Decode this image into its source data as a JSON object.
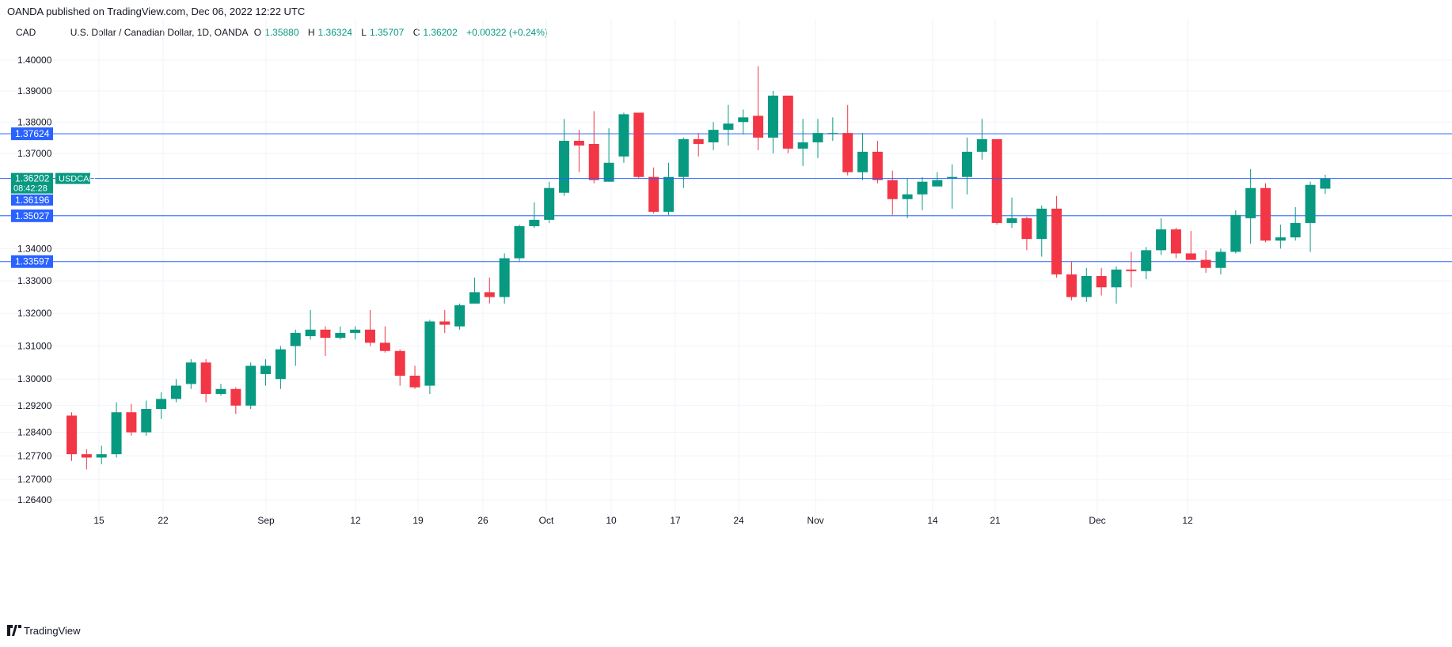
{
  "header": {
    "published": "OANDA published on TradingView.com, Dec 06, 2022 12:22 UTC"
  },
  "legend": {
    "currency": "CAD",
    "symbol_desc": "U.S. Dollar / Canadian Dollar, 1D, OANDA",
    "open_label": "O",
    "open": "1.35880",
    "high_label": "H",
    "high": "1.36324",
    "low_label": "L",
    "low": "1.35707",
    "close_label": "C",
    "close": "1.36202",
    "change": "+0.00322 (+0.24%)"
  },
  "footer": {
    "brand": "TradingView"
  },
  "colors": {
    "up": "#089981",
    "down": "#f23645",
    "hline": "#2962ff",
    "grid": "#f0f3fa",
    "axis_text": "#131722"
  },
  "chart_data": {
    "type": "candlestick",
    "title": "U.S. Dollar / Canadian Dollar, 1D, OANDA",
    "y_axis_scale": "log",
    "y_ticks": [
      1.4,
      1.39,
      1.38,
      1.37,
      1.35,
      1.34,
      1.33,
      1.32,
      1.31,
      1.3,
      1.292,
      1.284,
      1.277,
      1.27,
      1.264
    ],
    "x_ticks": [
      "15",
      "22",
      "Sep",
      "12",
      "19",
      "26",
      "Oct",
      "10",
      "17",
      "24",
      "Nov",
      "14",
      "21",
      "Dec",
      "12"
    ],
    "horizontal_lines": [
      {
        "label": "1.37624",
        "value": 1.37624
      },
      {
        "label": "1.35027",
        "value": 1.35027
      },
      {
        "label": "1.33597",
        "value": 1.33597
      }
    ],
    "price_line": {
      "value": 1.36202,
      "label": "1.36202",
      "countdown": "08:42:28",
      "symbol": "USDCAD"
    },
    "price_line_secondary": {
      "value": 1.36196,
      "label": "1.36196"
    },
    "candles": [
      {
        "o": 1.289,
        "h": 1.29,
        "l": 1.2755,
        "c": 1.2775
      },
      {
        "o": 1.2775,
        "h": 1.279,
        "l": 1.273,
        "c": 1.2765
      },
      {
        "o": 1.2765,
        "h": 1.28,
        "l": 1.2745,
        "c": 1.2775
      },
      {
        "o": 1.2775,
        "h": 1.293,
        "l": 1.2765,
        "c": 1.29
      },
      {
        "o": 1.29,
        "h": 1.2925,
        "l": 1.283,
        "c": 1.284
      },
      {
        "o": 1.284,
        "h": 1.2935,
        "l": 1.283,
        "c": 1.291
      },
      {
        "o": 1.291,
        "h": 1.296,
        "l": 1.288,
        "c": 1.294
      },
      {
        "o": 1.294,
        "h": 1.3,
        "l": 1.293,
        "c": 1.298
      },
      {
        "o": 1.2985,
        "h": 1.306,
        "l": 1.297,
        "c": 1.305
      },
      {
        "o": 1.305,
        "h": 1.306,
        "l": 1.293,
        "c": 1.2955
      },
      {
        "o": 1.2955,
        "h": 1.2985,
        "l": 1.295,
        "c": 1.297
      },
      {
        "o": 1.297,
        "h": 1.2975,
        "l": 1.2895,
        "c": 1.292
      },
      {
        "o": 1.292,
        "h": 1.305,
        "l": 1.291,
        "c": 1.304
      },
      {
        "o": 1.3015,
        "h": 1.306,
        "l": 1.298,
        "c": 1.304
      },
      {
        "o": 1.3,
        "h": 1.31,
        "l": 1.297,
        "c": 1.309
      },
      {
        "o": 1.31,
        "h": 1.315,
        "l": 1.304,
        "c": 1.314
      },
      {
        "o": 1.313,
        "h": 1.321,
        "l": 1.312,
        "c": 1.315
      },
      {
        "o": 1.315,
        "h": 1.316,
        "l": 1.307,
        "c": 1.3125
      },
      {
        "o": 1.3125,
        "h": 1.316,
        "l": 1.312,
        "c": 1.314
      },
      {
        "o": 1.314,
        "h": 1.316,
        "l": 1.312,
        "c": 1.315
      },
      {
        "o": 1.315,
        "h": 1.321,
        "l": 1.31,
        "c": 1.311
      },
      {
        "o": 1.311,
        "h": 1.316,
        "l": 1.308,
        "c": 1.3085
      },
      {
        "o": 1.3085,
        "h": 1.309,
        "l": 1.298,
        "c": 1.301
      },
      {
        "o": 1.301,
        "h": 1.304,
        "l": 1.297,
        "c": 1.2975
      },
      {
        "o": 1.298,
        "h": 1.318,
        "l": 1.2955,
        "c": 1.3175
      },
      {
        "o": 1.3175,
        "h": 1.321,
        "l": 1.314,
        "c": 1.3165
      },
      {
        "o": 1.316,
        "h": 1.323,
        "l": 1.315,
        "c": 1.3225
      },
      {
        "o": 1.323,
        "h": 1.331,
        "l": 1.323,
        "c": 1.3265
      },
      {
        "o": 1.3265,
        "h": 1.331,
        "l": 1.323,
        "c": 1.325
      },
      {
        "o": 1.325,
        "h": 1.3385,
        "l": 1.323,
        "c": 1.337
      },
      {
        "o": 1.337,
        "h": 1.3475,
        "l": 1.336,
        "c": 1.347
      },
      {
        "o": 1.347,
        "h": 1.3545,
        "l": 1.3465,
        "c": 1.349
      },
      {
        "o": 1.349,
        "h": 1.361,
        "l": 1.348,
        "c": 1.359
      },
      {
        "o": 1.3575,
        "h": 1.381,
        "l": 1.3565,
        "c": 1.374
      },
      {
        "o": 1.374,
        "h": 1.3775,
        "l": 1.364,
        "c": 1.3725
      },
      {
        "o": 1.373,
        "h": 1.3835,
        "l": 1.3605,
        "c": 1.3615
      },
      {
        "o": 1.361,
        "h": 1.378,
        "l": 1.361,
        "c": 1.367
      },
      {
        "o": 1.369,
        "h": 1.383,
        "l": 1.367,
        "c": 1.3825
      },
      {
        "o": 1.383,
        "h": 1.383,
        "l": 1.362,
        "c": 1.3625
      },
      {
        "o": 1.3625,
        "h": 1.3655,
        "l": 1.351,
        "c": 1.3515
      },
      {
        "o": 1.3515,
        "h": 1.367,
        "l": 1.3505,
        "c": 1.3625
      },
      {
        "o": 1.3625,
        "h": 1.375,
        "l": 1.359,
        "c": 1.3745
      },
      {
        "o": 1.3745,
        "h": 1.3765,
        "l": 1.369,
        "c": 1.373
      },
      {
        "o": 1.3735,
        "h": 1.38,
        "l": 1.371,
        "c": 1.3775
      },
      {
        "o": 1.3775,
        "h": 1.3855,
        "l": 1.3725,
        "c": 1.3795
      },
      {
        "o": 1.38,
        "h": 1.384,
        "l": 1.376,
        "c": 1.3815
      },
      {
        "o": 1.382,
        "h": 1.398,
        "l": 1.371,
        "c": 1.375
      },
      {
        "o": 1.375,
        "h": 1.39,
        "l": 1.37,
        "c": 1.3885
      },
      {
        "o": 1.3885,
        "h": 1.3885,
        "l": 1.37,
        "c": 1.3715
      },
      {
        "o": 1.3715,
        "h": 1.381,
        "l": 1.366,
        "c": 1.3735
      },
      {
        "o": 1.3735,
        "h": 1.381,
        "l": 1.3685,
        "c": 1.3765
      },
      {
        "o": 1.3765,
        "h": 1.3815,
        "l": 1.374,
        "c": 1.3765
      },
      {
        "o": 1.3765,
        "h": 1.3855,
        "l": 1.363,
        "c": 1.364
      },
      {
        "o": 1.364,
        "h": 1.3765,
        "l": 1.3615,
        "c": 1.3705
      },
      {
        "o": 1.3705,
        "h": 1.374,
        "l": 1.3605,
        "c": 1.3615
      },
      {
        "o": 1.3615,
        "h": 1.3645,
        "l": 1.3505,
        "c": 1.3555
      },
      {
        "o": 1.3555,
        "h": 1.362,
        "l": 1.3495,
        "c": 1.357
      },
      {
        "o": 1.357,
        "h": 1.3625,
        "l": 1.352,
        "c": 1.361
      },
      {
        "o": 1.3595,
        "h": 1.364,
        "l": 1.3595,
        "c": 1.3615
      },
      {
        "o": 1.362,
        "h": 1.3665,
        "l": 1.3525,
        "c": 1.3625
      },
      {
        "o": 1.3625,
        "h": 1.375,
        "l": 1.357,
        "c": 1.3705
      },
      {
        "o": 1.3705,
        "h": 1.381,
        "l": 1.368,
        "c": 1.3745
      },
      {
        "o": 1.3745,
        "h": 1.3745,
        "l": 1.3475,
        "c": 1.348
      },
      {
        "o": 1.348,
        "h": 1.356,
        "l": 1.3465,
        "c": 1.3495
      },
      {
        "o": 1.3495,
        "h": 1.35,
        "l": 1.3395,
        "c": 1.343
      },
      {
        "o": 1.343,
        "h": 1.3535,
        "l": 1.3375,
        "c": 1.3525
      },
      {
        "o": 1.3525,
        "h": 1.3565,
        "l": 1.331,
        "c": 1.332
      },
      {
        "o": 1.332,
        "h": 1.336,
        "l": 1.324,
        "c": 1.325
      },
      {
        "o": 1.325,
        "h": 1.334,
        "l": 1.3235,
        "c": 1.3315
      },
      {
        "o": 1.3315,
        "h": 1.334,
        "l": 1.3255,
        "c": 1.328
      },
      {
        "o": 1.328,
        "h": 1.3345,
        "l": 1.323,
        "c": 1.3335
      },
      {
        "o": 1.3335,
        "h": 1.339,
        "l": 1.328,
        "c": 1.333
      },
      {
        "o": 1.333,
        "h": 1.3405,
        "l": 1.3305,
        "c": 1.3395
      },
      {
        "o": 1.3395,
        "h": 1.3495,
        "l": 1.338,
        "c": 1.346
      },
      {
        "o": 1.346,
        "h": 1.3465,
        "l": 1.337,
        "c": 1.3385
      },
      {
        "o": 1.3385,
        "h": 1.3455,
        "l": 1.3365,
        "c": 1.3365
      },
      {
        "o": 1.3365,
        "h": 1.3395,
        "l": 1.3325,
        "c": 1.334
      },
      {
        "o": 1.334,
        "h": 1.34,
        "l": 1.332,
        "c": 1.339
      },
      {
        "o": 1.339,
        "h": 1.352,
        "l": 1.3385,
        "c": 1.3505
      },
      {
        "o": 1.3495,
        "h": 1.365,
        "l": 1.3415,
        "c": 1.359
      },
      {
        "o": 1.359,
        "h": 1.3605,
        "l": 1.342,
        "c": 1.3425
      },
      {
        "o": 1.3425,
        "h": 1.3475,
        "l": 1.34,
        "c": 1.3435
      },
      {
        "o": 1.3435,
        "h": 1.353,
        "l": 1.3425,
        "c": 1.348
      },
      {
        "o": 1.348,
        "h": 1.361,
        "l": 1.339,
        "c": 1.36
      },
      {
        "o": 1.3588,
        "h": 1.3632,
        "l": 1.3571,
        "c": 1.362
      }
    ]
  }
}
